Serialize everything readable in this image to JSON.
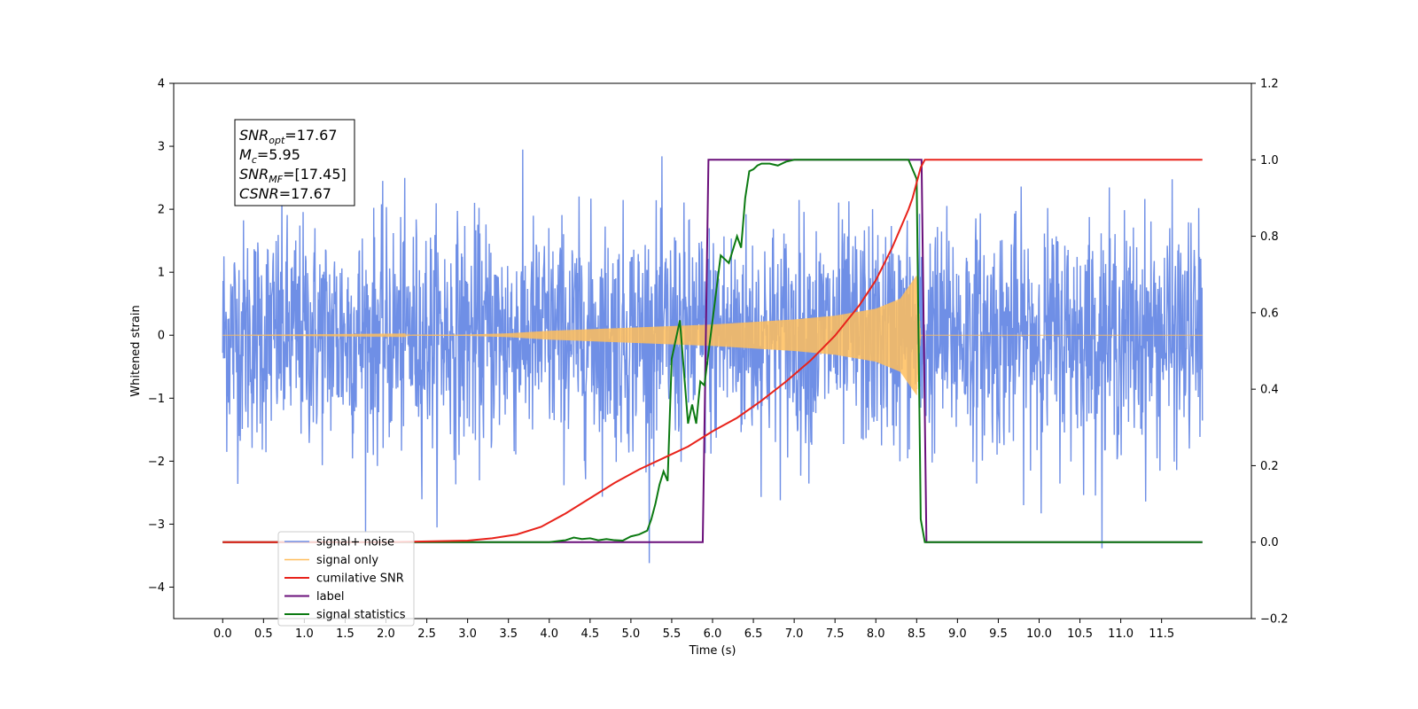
{
  "chart_data": {
    "type": "line",
    "title": "",
    "xlabel": "Time (s)",
    "ylabel": "Whitened strain",
    "ylabel_right": "",
    "xlim": [
      -0.6,
      12.6
    ],
    "ylim_left": [
      -4.5,
      4.0
    ],
    "ylim_right": [
      -0.2,
      1.2
    ],
    "x_ticks": [
      0.0,
      0.5,
      1.0,
      1.5,
      2.0,
      2.5,
      3.0,
      3.5,
      4.0,
      4.5,
      5.0,
      5.5,
      6.0,
      6.5,
      7.0,
      7.5,
      8.0,
      8.5,
      9.0,
      9.5,
      10.0,
      10.5,
      11.0,
      11.5
    ],
    "x_tick_labels": [
      "0.0",
      "0.5",
      "1.0",
      "1.5",
      "2.0",
      "2.5",
      "3.0",
      "3.5",
      "4.0",
      "4.5",
      "5.0",
      "5.5",
      "6.0",
      "6.5",
      "7.0",
      "7.5",
      "8.0",
      "8.5",
      "9.0",
      "9.5",
      "10.0",
      "10.5",
      "11.0",
      "11.5"
    ],
    "y_left_ticks": [
      4,
      3,
      2,
      1,
      0,
      -1,
      -2,
      -3,
      -4
    ],
    "y_left_tick_labels": [
      "4",
      "3",
      "2",
      "1",
      "0",
      "−1",
      "−2",
      "−3",
      "−4"
    ],
    "y_right_ticks": [
      1.2,
      1.0,
      0.8,
      0.6,
      0.4,
      0.2,
      0.0,
      -0.2
    ],
    "y_right_tick_labels": [
      "1.2",
      "1.0",
      "0.8",
      "0.6",
      "0.4",
      "0.2",
      "0.0",
      "−0.2"
    ],
    "grid": false,
    "legend_position": "lower-left",
    "info_box": {
      "lines": [
        {
          "main": "SNR",
          "sub": "opt",
          "rest": "=17.67"
        },
        {
          "main": "M",
          "sub": "c",
          "rest": "=5.95"
        },
        {
          "main": "SNR",
          "sub": "MF",
          "rest": "=[17.45]"
        },
        {
          "main": "CSNR",
          "sub": "",
          "rest": "=17.67"
        }
      ]
    },
    "series": [
      {
        "name": "signal+ noise",
        "axis": "left",
        "color": "#6f8fe6",
        "description": "noisy whitened strain, approx N(0,0.9), spans t 0.0 to 12.0",
        "t_range": [
          0.0,
          12.0
        ],
        "noise_std": 0.9
      },
      {
        "name": "signal only",
        "axis": "left",
        "color": "#ffbe5c",
        "description": "chirp waveform, amplitude envelope rising to ~1.0 at merger t≈8.5",
        "envelope_points": [
          [
            0.0,
            0.0
          ],
          [
            3.0,
            0.01
          ],
          [
            3.5,
            0.03
          ],
          [
            4.0,
            0.07
          ],
          [
            5.0,
            0.12
          ],
          [
            6.0,
            0.17
          ],
          [
            7.0,
            0.25
          ],
          [
            7.5,
            0.31
          ],
          [
            8.0,
            0.42
          ],
          [
            8.3,
            0.58
          ],
          [
            8.5,
            0.95
          ],
          [
            8.55,
            0.0
          ],
          [
            12.0,
            0.0
          ]
        ]
      },
      {
        "name": "cumilative SNR",
        "axis": "right",
        "color": "#e8231b",
        "x": [
          0.0,
          1.0,
          2.0,
          3.0,
          3.3,
          3.6,
          3.9,
          4.2,
          4.5,
          4.8,
          5.1,
          5.4,
          5.7,
          6.0,
          6.3,
          6.6,
          6.9,
          7.2,
          7.5,
          7.8,
          8.0,
          8.2,
          8.3,
          8.4,
          8.45,
          8.5,
          8.55,
          8.6,
          12.0
        ],
        "y": [
          0.0,
          0.0,
          0.0,
          0.004,
          0.01,
          0.02,
          0.04,
          0.075,
          0.115,
          0.155,
          0.19,
          0.22,
          0.25,
          0.29,
          0.325,
          0.37,
          0.42,
          0.475,
          0.54,
          0.62,
          0.685,
          0.77,
          0.82,
          0.87,
          0.9,
          0.94,
          0.98,
          1.0,
          1.0
        ]
      },
      {
        "name": "label",
        "axis": "right",
        "color": "#6a0f7a",
        "x": [
          0.0,
          5.88,
          5.95,
          8.56,
          8.62,
          12.0
        ],
        "y": [
          0.0,
          0.0,
          1.0,
          1.0,
          0.0,
          0.0
        ]
      },
      {
        "name": "signal statistics",
        "axis": "right",
        "color": "#0c7a12",
        "x": [
          0.0,
          1.0,
          2.0,
          3.0,
          3.5,
          4.0,
          4.2,
          4.3,
          4.4,
          4.5,
          4.6,
          4.7,
          4.8,
          4.9,
          5.0,
          5.1,
          5.2,
          5.25,
          5.3,
          5.35,
          5.4,
          5.45,
          5.5,
          5.6,
          5.7,
          5.75,
          5.8,
          5.85,
          5.9,
          6.0,
          6.1,
          6.2,
          6.3,
          6.35,
          6.4,
          6.45,
          6.5,
          6.55,
          6.6,
          6.7,
          6.8,
          6.9,
          7.0,
          7.1,
          7.2,
          7.4,
          7.6,
          8.0,
          8.4,
          8.5,
          8.55,
          8.6,
          8.65,
          8.7,
          9.0,
          12.0
        ],
        "y": [
          0.0,
          0.0,
          0.0,
          0.0,
          0.0,
          0.0,
          0.005,
          0.012,
          0.008,
          0.01,
          0.005,
          0.008,
          0.005,
          0.004,
          0.015,
          0.02,
          0.03,
          0.06,
          0.1,
          0.15,
          0.185,
          0.16,
          0.48,
          0.58,
          0.31,
          0.36,
          0.31,
          0.42,
          0.41,
          0.58,
          0.75,
          0.73,
          0.8,
          0.77,
          0.9,
          0.97,
          0.975,
          0.985,
          0.99,
          0.99,
          0.985,
          0.995,
          1.0,
          1.0,
          1.0,
          1.0,
          1.0,
          1.0,
          1.0,
          0.95,
          0.06,
          0.0,
          0.0,
          0.0,
          0.0,
          0.0
        ],
        "x_end": 11.95
      }
    ]
  }
}
